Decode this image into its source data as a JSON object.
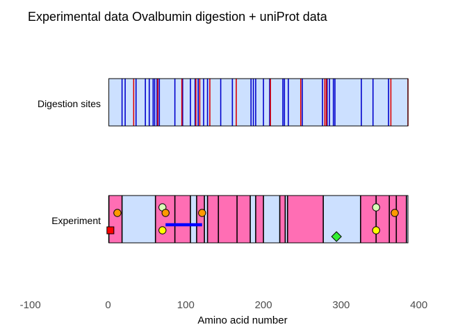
{
  "chart_data": {
    "type": "bar",
    "title": "Experimental data Ovalbumin digestion + uniProt data",
    "xlabel": "Amino acid number",
    "ylabel": "",
    "xlim": [
      -100,
      400
    ],
    "x_ticks": [
      -100,
      0,
      100,
      200,
      300,
      400
    ],
    "x_tick_labels": [
      "-100",
      "0",
      "100",
      "200",
      "300",
      "400"
    ],
    "grid": false,
    "colors": {
      "background_band": "#cce0ff",
      "peptide": "#ff6eb4",
      "digest_blue": "#0000cc",
      "digest_red": "#dd0000",
      "boundary": "#000000",
      "orange_marker": "#ff9900",
      "yellow_marker": "#ffff00",
      "light_marker": "#d8ffb8",
      "green_marker": "#33ee33",
      "red_marker": "#ff0000",
      "range_line": "#0000ff"
    },
    "rows": {
      "digestion": {
        "label": "Digestion sites",
        "start": 1,
        "end": 386,
        "sites_blue": [
          18,
          22,
          36,
          48,
          53,
          58,
          60,
          63,
          66,
          86,
          96,
          106,
          112,
          116,
          123,
          128,
          145,
          160,
          184,
          187,
          190,
          200,
          208,
          225,
          227,
          232,
          250,
          276,
          282,
          285,
          290,
          292,
          326,
          341,
          361
        ],
        "sites_red": [
          33,
          64,
          95,
          113,
          118,
          131,
          165,
          209,
          248,
          279,
          281,
          364,
          386
        ]
      },
      "experiment": {
        "label": "Experiment",
        "start": 1,
        "end": 386,
        "peptides": [
          [
            1,
            18
          ],
          [
            61,
            106
          ],
          [
            114,
            124
          ],
          [
            128,
            183
          ],
          [
            190,
            200
          ],
          [
            221,
            228
          ],
          [
            231,
            277
          ],
          [
            325,
            384
          ]
        ],
        "boundaries": [
          1,
          18,
          61,
          86,
          106,
          114,
          124,
          128,
          142,
          166,
          183,
          190,
          200,
          221,
          228,
          231,
          277,
          325,
          345,
          362,
          371,
          384
        ],
        "markers": [
          {
            "x": 3,
            "level": "low",
            "shape": "square",
            "color": "red"
          },
          {
            "x": 12,
            "level": "mid",
            "shape": "circle",
            "color": "orange"
          },
          {
            "x": 70,
            "level": "high",
            "shape": "circle",
            "color": "light"
          },
          {
            "x": 74,
            "level": "mid",
            "shape": "circle",
            "color": "orange"
          },
          {
            "x": 70,
            "level": "low",
            "shape": "circle",
            "color": "yellow"
          },
          {
            "x": 121,
            "level": "mid",
            "shape": "circle",
            "color": "orange"
          },
          {
            "x": 294,
            "level": "bottom",
            "shape": "diamond",
            "color": "green"
          },
          {
            "x": 345,
            "level": "high",
            "shape": "circle",
            "color": "light"
          },
          {
            "x": 345,
            "level": "low",
            "shape": "circle",
            "color": "yellow"
          },
          {
            "x": 369,
            "level": "mid",
            "shape": "circle",
            "color": "orange"
          }
        ],
        "ranges": [
          {
            "x0": 74,
            "x1": 121,
            "level": "range"
          }
        ]
      }
    }
  }
}
